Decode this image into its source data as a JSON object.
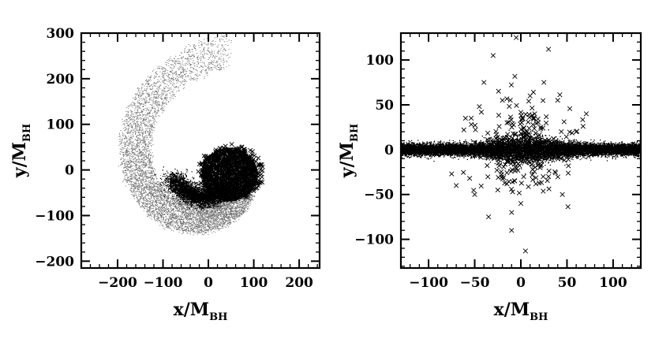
{
  "chart_data": [
    {
      "type": "scatter",
      "xlabel": "x/M",
      "xlabel_sub": "BH",
      "ylabel": "y/M",
      "ylabel_sub": "BH",
      "xlim": [
        -280,
        245
      ],
      "ylim": [
        -215,
        300
      ],
      "xticks": [
        -200,
        -100,
        0,
        100,
        200
      ],
      "yticks": [
        -200,
        -100,
        0,
        100,
        200,
        300
      ],
      "xtick_labels": [
        "-200",
        "-100",
        "0",
        "100",
        "200"
      ],
      "ytick_labels": [
        "-200",
        "-100",
        "0",
        "100",
        "200",
        "300"
      ],
      "series": [
        {
          "marker": "dot",
          "color": "#000000",
          "description_points": "logarithmic spiral arm of light particles: outer arm from (10,262) at the top sweeping counter-clockwise through (-230,0) to (-60,-190) and joining a dense core region around (30,-20)",
          "spiral": {
            "theta_start_deg": 80,
            "theta_end_deg": 400,
            "r_start": 262,
            "r_end": 55,
            "width_start": 55,
            "width_end": 40
          }
        },
        {
          "marker": "x",
          "color": "#000000",
          "description_points": "heavy particles concentrated in the core region 0..110 in x and -80..60 in y"
        }
      ]
    },
    {
      "type": "scatter",
      "xlabel": "x/M",
      "xlabel_sub": "BH",
      "ylabel": "y/M",
      "ylabel_sub": "BH",
      "xlim": [
        -130,
        130
      ],
      "ylim": [
        -132,
        130
      ],
      "xticks": [
        -100,
        -50,
        0,
        50,
        100
      ],
      "yticks": [
        -100,
        -50,
        0,
        50,
        100
      ],
      "xtick_labels": [
        "-100",
        "-50",
        "0",
        "50",
        "100"
      ],
      "ytick_labels": [
        "-100",
        "-50",
        "0",
        "50",
        "100"
      ],
      "series": [
        {
          "marker": "dot",
          "color": "#000000",
          "description_points": "thin edge-on disk along y≈0 spanning x from -130 to 130 with half-thickness ~8, thickened near the centre"
        },
        {
          "marker": "x",
          "color": "#000000",
          "description_points": "heavy particles scattered mostly within |x|<60 and |y|<110",
          "sample": [
            [
              -40,
              75
            ],
            [
              -30,
              105
            ],
            [
              -45,
              48
            ],
            [
              30,
              112
            ],
            [
              -5,
              125
            ],
            [
              25,
              75
            ],
            [
              40,
              55
            ],
            [
              -60,
              35
            ],
            [
              -75,
              -27
            ],
            [
              -50,
              -50
            ],
            [
              -35,
              -75
            ],
            [
              -10,
              -90
            ],
            [
              5,
              -113
            ],
            [
              45,
              -50
            ],
            [
              -25,
              -45
            ],
            [
              0,
              -60
            ],
            [
              -10,
              -70
            ],
            [
              30,
              -30
            ],
            [
              -70,
              -40
            ],
            [
              60,
              20
            ],
            [
              -15,
              30
            ],
            [
              15,
              40
            ],
            [
              -20,
              55
            ],
            [
              10,
              60
            ]
          ]
        }
      ]
    }
  ]
}
